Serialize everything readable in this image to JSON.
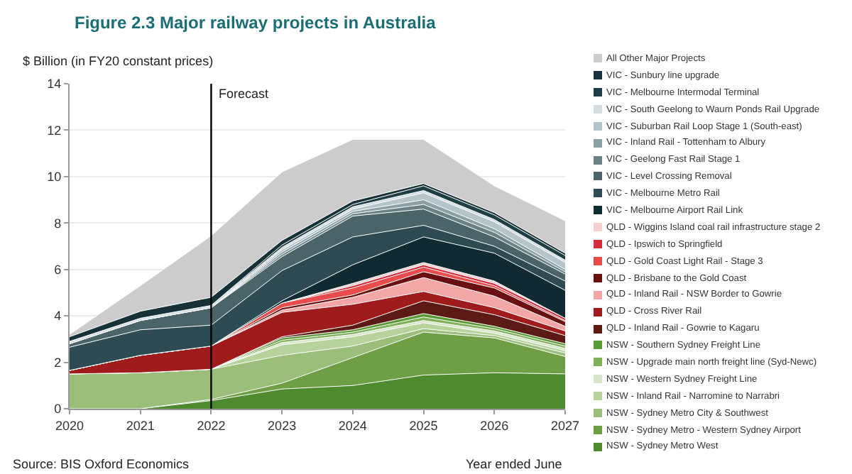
{
  "chart_data": {
    "type": "area",
    "stacked": true,
    "title": "Figure 2.3 Major railway projects in Australia",
    "ylabel": "$ Billion (in FY20 constant prices)",
    "xlabel": "Year ended June",
    "x": [
      2020,
      2021,
      2022,
      2023,
      2024,
      2025,
      2026,
      2027
    ],
    "xlim": [
      2020,
      2027
    ],
    "xticks": [
      2020,
      2021,
      2022,
      2023,
      2024,
      2025,
      2026,
      2027
    ],
    "ylim": [
      0,
      14
    ],
    "yticks": [
      0,
      2,
      4,
      6,
      8,
      10,
      12,
      14
    ],
    "grid": "y",
    "legend": "right",
    "ref_lines": [
      {
        "axis": "x",
        "value": 2022,
        "label": "Forecast",
        "color": "#000000"
      }
    ],
    "annotations": [
      "Source: BIS Oxford Economics"
    ],
    "series": [
      {
        "name": "NSW - Sydney Metro West",
        "color": "#4e8a2e",
        "values": [
          0,
          0,
          0.35,
          0.85,
          1.0,
          1.45,
          1.55,
          1.5
        ]
      },
      {
        "name": "NSW - Sydney Metro - Western Sydney Airport",
        "color": "#6f9f45",
        "values": [
          0,
          0,
          0.05,
          0.25,
          1.2,
          1.85,
          1.5,
          0.75
        ]
      },
      {
        "name": "NSW - Sydney Metro City & Southwest",
        "color": "#9bbf7a",
        "values": [
          1.5,
          1.55,
          1.3,
          1.2,
          0.5,
          0.15,
          0.1,
          0.15
        ]
      },
      {
        "name": "NSW - Inland Rail - Narromine to Narrabri",
        "color": "#b6d39c",
        "values": [
          0,
          0,
          0,
          0.45,
          0.4,
          0.25,
          0.1,
          0.1
        ]
      },
      {
        "name": "NSW - Western Sydney Freight Line",
        "color": "#d7e6c8",
        "values": [
          0,
          0,
          0,
          0.1,
          0.1,
          0.1,
          0.1,
          0.1
        ]
      },
      {
        "name": "NSW - Upgrade main north freight line (Syd-Newc)",
        "color": "#7fb05a",
        "values": [
          0,
          0,
          0,
          0.1,
          0.1,
          0.15,
          0.1,
          0.1
        ]
      },
      {
        "name": "NSW - Southern Sydney Freight Line",
        "color": "#5a9a35",
        "values": [
          0,
          0,
          0,
          0.1,
          0.1,
          0.15,
          0.1,
          0.1
        ]
      },
      {
        "name": "QLD - Inland Rail - Gowrie to Kagaru",
        "color": "#5c1a14",
        "values": [
          0,
          0,
          0,
          0.05,
          0.2,
          0.55,
          0.5,
          0.35
        ]
      },
      {
        "name": "QLD - Cross River Rail",
        "color": "#a01c1c",
        "values": [
          0.15,
          0.75,
          1.0,
          1.05,
          0.9,
          0.4,
          0.3,
          0.2
        ]
      },
      {
        "name": "QLD - Inland Rail - NSW Border to Gowrie",
        "color": "#f2a6a6",
        "values": [
          0,
          0,
          0,
          0.1,
          0.3,
          0.6,
          0.5,
          0.2
        ]
      },
      {
        "name": "QLD - Brisbane to the Gold Coast",
        "color": "#6b1010",
        "values": [
          0,
          0,
          0,
          0.1,
          0.1,
          0.25,
          0.35,
          0.2
        ]
      },
      {
        "name": "QLD - Gold Coast Light Rail - Stage 3",
        "color": "#e84c4c",
        "values": [
          0,
          0,
          0,
          0.2,
          0.3,
          0.2,
          0.1,
          0.05
        ]
      },
      {
        "name": "QLD - Ipswich to Springfield",
        "color": "#d42a3a",
        "values": [
          0,
          0,
          0,
          0,
          0.1,
          0.1,
          0.1,
          0.1
        ]
      },
      {
        "name": "QLD - Wiggins Island coal rail infrastructure stage 2",
        "color": "#f4d0d0",
        "values": [
          0,
          0,
          0,
          0,
          0.1,
          0.1,
          0.1,
          0
        ]
      },
      {
        "name": "VIC - Melbourne Airport Rail Link",
        "color": "#0f2a30",
        "values": [
          0,
          0,
          0,
          0.1,
          0.8,
          1.1,
          1.2,
          1.2
        ]
      },
      {
        "name": "VIC - Melbourne Metro Rail",
        "color": "#2e4a52",
        "values": [
          1.0,
          1.1,
          0.9,
          1.3,
          1.2,
          0.5,
          0.3,
          0.4
        ]
      },
      {
        "name": "VIC - Level Crossing Removal",
        "color": "#4a6468",
        "values": [
          0.15,
          0.4,
          0.75,
          0.6,
          0.9,
          0.7,
          0.4,
          0.3
        ]
      },
      {
        "name": "VIC - Geelong Fast Rail Stage 1",
        "color": "#6a8286",
        "values": [
          0,
          0,
          0,
          0.1,
          0.1,
          0.2,
          0.2,
          0.1
        ]
      },
      {
        "name": "VIC - Inland Rail - Tottenham to Albury",
        "color": "#8aa0a4",
        "values": [
          0,
          0,
          0,
          0.1,
          0.1,
          0.2,
          0.15,
          0.1
        ]
      },
      {
        "name": "VIC - Suburban Rail Loop Stage 1 (South-east)",
        "color": "#b4c4c8",
        "values": [
          0,
          0,
          0,
          0.1,
          0.1,
          0.3,
          0.3,
          0.3
        ]
      },
      {
        "name": "VIC - South Geelong to Waurn Ponds Rail Upgrade",
        "color": "#d4dee0",
        "values": [
          0.1,
          0.1,
          0.1,
          0.1,
          0.1,
          0.1,
          0.1,
          0.1
        ]
      },
      {
        "name": "VIC - Melbourne Intermodal Terminal",
        "color": "#1f3e44",
        "values": [
          0,
          0,
          0,
          0.1,
          0.1,
          0.2,
          0.2,
          0.2
        ]
      },
      {
        "name": "VIC - Sunbury line upgrade",
        "color": "#163238",
        "values": [
          0.2,
          0.3,
          0.35,
          0.2,
          0.15,
          0.1,
          0.1,
          0.1
        ]
      },
      {
        "name": "All Other Major Projects",
        "color": "#cccccc",
        "values": [
          0.1,
          1.1,
          2.65,
          2.95,
          2.65,
          1.9,
          1.15,
          1.4
        ]
      }
    ]
  }
}
